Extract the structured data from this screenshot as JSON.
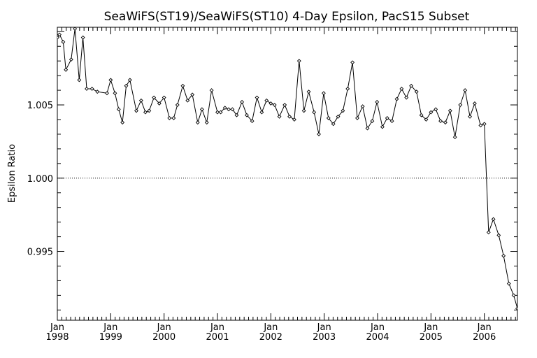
{
  "chart_data": {
    "type": "line",
    "title": "SeaWiFS(ST19)/SeaWiFS(ST10) 4-Day Epsilon, PacS15 Subset",
    "xlabel": "",
    "ylabel": "Epsilon Ratio",
    "xlim": [
      1998.0,
      2006.62
    ],
    "ylim": [
      0.9903,
      1.0103
    ],
    "grid": false,
    "reference_line": {
      "y": 1.0,
      "style": "dotted"
    },
    "x_tick_labels": [
      {
        "month": "Jan",
        "year": "1998",
        "x": 1998.0
      },
      {
        "month": "Jan",
        "year": "1999",
        "x": 1999.0
      },
      {
        "month": "Jan",
        "year": "2000",
        "x": 2000.0
      },
      {
        "month": "Jan",
        "year": "2001",
        "x": 2001.0
      },
      {
        "month": "Jan",
        "year": "2002",
        "x": 2002.0
      },
      {
        "month": "Jan",
        "year": "2003",
        "x": 2003.0
      },
      {
        "month": "Jan",
        "year": "2004",
        "x": 2004.0
      },
      {
        "month": "Jan",
        "year": "2005",
        "x": 2005.0
      },
      {
        "month": "Jan",
        "year": "2006",
        "x": 2006.0
      }
    ],
    "y_ticks": [
      0.995,
      1.0,
      1.005
    ],
    "y_tick_labels": [
      "0.995",
      "1.000",
      "1.005"
    ],
    "series": [
      {
        "marker": "diamond",
        "color": "#000000",
        "x": [
          1998.0,
          1998.04,
          1998.11,
          1998.16,
          1998.26,
          1998.33,
          1998.41,
          1998.48,
          1998.55,
          1998.65,
          1998.75,
          1998.93,
          1999.0,
          1999.08,
          1999.15,
          1999.22,
          1999.29,
          1999.36,
          1999.48,
          1999.57,
          1999.65,
          1999.72,
          1999.81,
          1999.91,
          2000.0,
          2000.1,
          2000.18,
          2000.25,
          2000.35,
          2000.44,
          2000.53,
          2000.63,
          2000.71,
          2000.8,
          2000.89,
          2001.0,
          2001.06,
          2001.14,
          2001.21,
          2001.28,
          2001.36,
          2001.46,
          2001.55,
          2001.65,
          2001.74,
          2001.83,
          2001.92,
          2002.0,
          2002.07,
          2002.16,
          2002.26,
          2002.35,
          2002.44,
          2002.53,
          2002.62,
          2002.71,
          2002.81,
          2002.9,
          2002.99,
          2003.08,
          2003.17,
          2003.26,
          2003.35,
          2003.44,
          2003.53,
          2003.62,
          2003.72,
          2003.81,
          2003.9,
          2003.99,
          2004.09,
          2004.18,
          2004.27,
          2004.36,
          2004.45,
          2004.54,
          2004.63,
          2004.73,
          2004.82,
          2004.91,
          2005.0,
          2005.09,
          2005.18,
          2005.27,
          2005.36,
          2005.45,
          2005.55,
          2005.64,
          2005.73,
          2005.82,
          2005.93,
          2006.0,
          2006.08,
          2006.17,
          2006.27,
          2006.36,
          2006.46,
          2006.55,
          2006.62
        ],
        "values": [
          1.0096,
          1.0098,
          1.0093,
          1.0074,
          1.0081,
          1.0102,
          1.0067,
          1.0096,
          1.0061,
          1.0061,
          1.0059,
          1.0058,
          1.0067,
          1.0058,
          1.0047,
          1.0038,
          1.0063,
          1.0067,
          1.0046,
          1.0053,
          1.0045,
          1.0046,
          1.0055,
          1.0051,
          1.0055,
          1.0041,
          1.0041,
          1.005,
          1.0063,
          1.0053,
          1.0057,
          1.0038,
          1.0047,
          1.0038,
          1.006,
          1.0045,
          1.0045,
          1.0048,
          1.0047,
          1.0047,
          1.0043,
          1.0052,
          1.0043,
          1.0039,
          1.0055,
          1.0045,
          1.0053,
          1.0051,
          1.005,
          1.0042,
          1.005,
          1.0042,
          1.004,
          1.008,
          1.0046,
          1.0059,
          1.0045,
          1.003,
          1.0058,
          1.0041,
          1.0037,
          1.0042,
          1.0046,
          1.0061,
          1.0079,
          1.0041,
          1.0049,
          1.0034,
          1.0039,
          1.0052,
          1.0035,
          1.0041,
          1.0039,
          1.0054,
          1.0061,
          1.0055,
          1.0063,
          1.0059,
          1.0043,
          1.004,
          1.0045,
          1.0047,
          1.0039,
          1.0038,
          1.0046,
          1.0028,
          1.005,
          1.006,
          1.0042,
          1.0051,
          1.0036,
          1.0037,
          0.9963,
          0.9972,
          0.9961,
          0.9947,
          0.9928,
          0.992,
          0.9911
        ]
      }
    ]
  }
}
